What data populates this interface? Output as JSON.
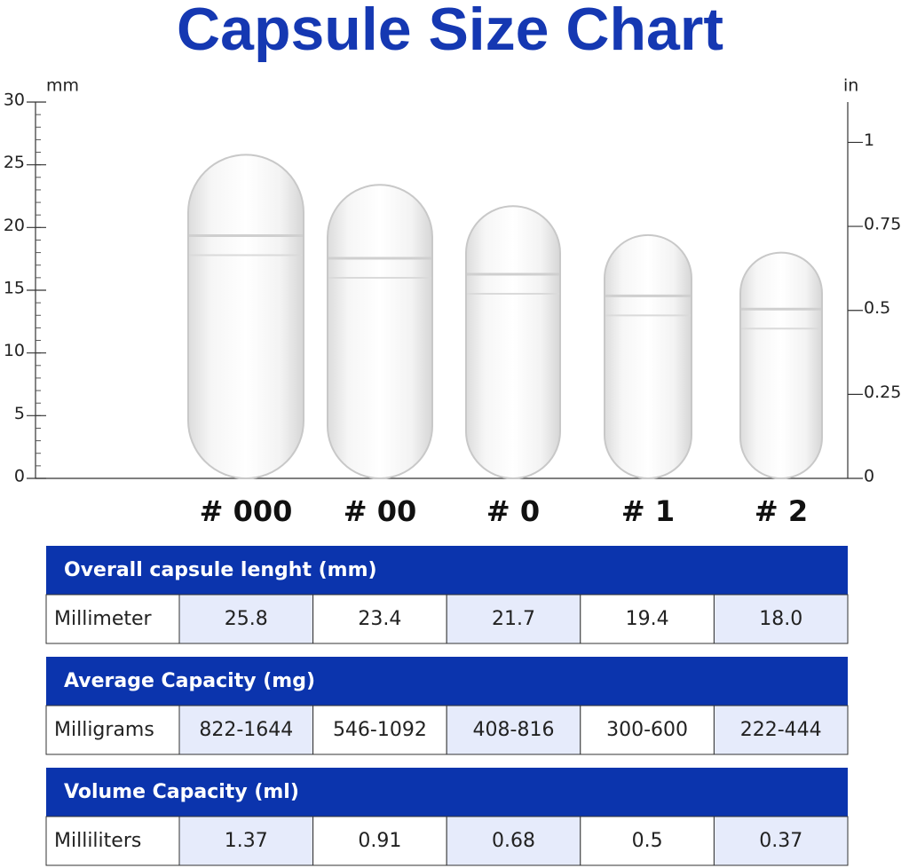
{
  "title": "Capsule Size Chart",
  "left_axis": {
    "unit": "mm",
    "ylim": [
      0,
      30
    ],
    "ticks": [
      0,
      5,
      10,
      15,
      20,
      25,
      30
    ]
  },
  "right_axis": {
    "unit": "in",
    "ylim": [
      0,
      1.12
    ],
    "ticks": [
      0,
      0.25,
      0.5,
      0.75,
      1
    ]
  },
  "capsules": [
    "# 000",
    "# 00",
    "# 0",
    "# 1",
    "# 2"
  ],
  "tables": [
    {
      "heading": "Overall capsule lenght (mm)",
      "row_label": "Millimeter",
      "values": [
        "25.8",
        "23.4",
        "21.7",
        "19.4",
        "18.0"
      ]
    },
    {
      "heading": "Average Capacity (mg)",
      "row_label": "Milligrams",
      "values": [
        "822-1644",
        "546-1092",
        "408-816",
        "300-600",
        "222-444"
      ]
    },
    {
      "heading": "Volume Capacity (ml)",
      "row_label": "Milliliters",
      "values": [
        "1.37",
        "0.91",
        "0.68",
        "0.5",
        "0.37"
      ]
    }
  ]
}
